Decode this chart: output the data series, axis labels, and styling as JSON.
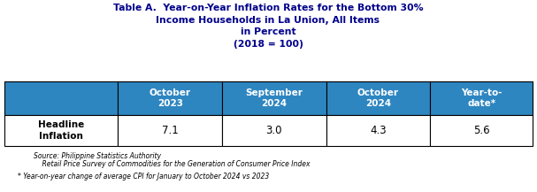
{
  "title_line1": "Table A.  Year-on-Year Inflation Rates for the Bottom 30%",
  "title_line2": "Income Households in La Union, All Items",
  "title_line3": "in Percent",
  "title_line4": "(2018 = 100)",
  "col_headers": [
    "October\n2023",
    "September\n2024",
    "October\n2024",
    "Year-to-\ndate*"
  ],
  "row_label": "Headline\nInflation",
  "values": [
    "7.1",
    "3.0",
    "4.3",
    "5.6"
  ],
  "source_line1": "Source: Philippine Statistics Authority",
  "source_line2": "    Retail Price Survey of Commodities for the Generation of Consumer Price Index",
  "footnote": "* Year-on-year change of average CPI for January to October 2024 vs 2023",
  "header_bg": "#2E86C1",
  "header_text": "#FFFFFF",
  "row_bg": "#FFFFFF",
  "row_text": "#000000",
  "border_color": "#000000",
  "title_color": "#00008B",
  "figsize": [
    6.07,
    2.17
  ],
  "dpi": 100
}
